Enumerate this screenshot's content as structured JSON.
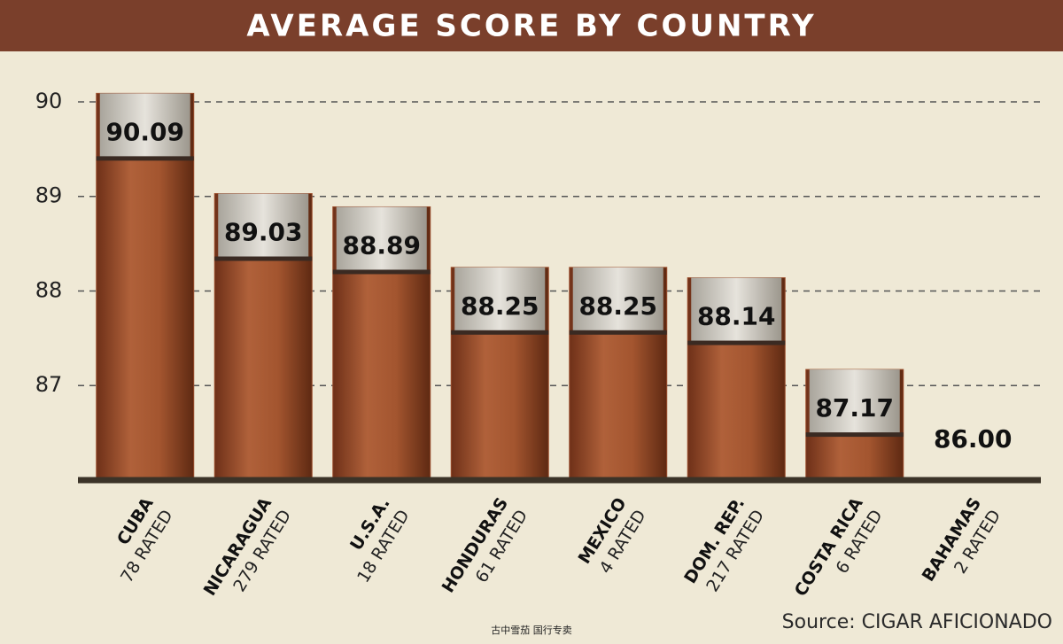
{
  "chart_data": {
    "type": "bar",
    "title": "AVERAGE SCORE BY COUNTRY",
    "categories": [
      "CUBA",
      "NICARAGUA",
      "U.S.A.",
      "HONDURAS",
      "MEXICO",
      "DOM. REP.",
      "COSTA RICA",
      "BAHAMAS"
    ],
    "category_notes": [
      "78 RATED",
      "279 RATED",
      "18 RATED",
      "61 RATED",
      "4 RATED",
      "217 RATED",
      "6 RATED",
      "2 RATED"
    ],
    "values": [
      90.09,
      89.03,
      88.89,
      88.25,
      88.25,
      88.14,
      87.17,
      86.0
    ],
    "value_labels": [
      "90.09",
      "89.03",
      "88.89",
      "88.25",
      "88.25",
      "88.14",
      "87.17",
      "86.00"
    ],
    "color": "#9b4e2c",
    "ylim": [
      86,
      90.5
    ],
    "yticks": [
      87,
      88,
      89,
      90
    ],
    "grid": true,
    "source": "Source: CIGAR AFICIONADO",
    "watermark": "古中雪茄 国行专卖"
  }
}
